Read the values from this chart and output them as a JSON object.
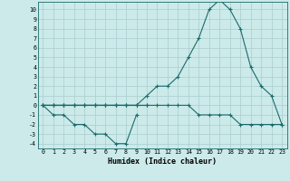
{
  "xlabel": "Humidex (Indice chaleur)",
  "bg_color": "#cceaea",
  "line_color": "#1a6b6b",
  "grid_color": "#aacccc",
  "xlim": [
    -0.5,
    23.5
  ],
  "ylim": [
    -4.5,
    10.8
  ],
  "xticks": [
    0,
    1,
    2,
    3,
    4,
    5,
    6,
    7,
    8,
    9,
    10,
    11,
    12,
    13,
    14,
    15,
    16,
    17,
    18,
    19,
    20,
    21,
    22,
    23
  ],
  "yticks": [
    -4,
    -3,
    -2,
    -1,
    0,
    1,
    2,
    3,
    4,
    5,
    6,
    7,
    8,
    9,
    10
  ],
  "series": [
    {
      "x": [
        0,
        1,
        2,
        3,
        4,
        5,
        6,
        7,
        8,
        9,
        10
      ],
      "y": [
        0,
        0,
        0,
        0,
        0,
        0,
        0,
        0,
        0,
        0,
        0
      ]
    },
    {
      "x": [
        0,
        1,
        2,
        3,
        4,
        5,
        6,
        7,
        8,
        9
      ],
      "y": [
        0,
        -1,
        -1,
        -2,
        -2,
        -3,
        -3,
        -4,
        -4,
        -1
      ]
    },
    {
      "x": [
        0,
        1,
        2,
        3,
        4,
        5,
        6,
        7,
        8,
        9,
        10,
        11,
        12,
        13,
        14,
        15,
        16,
        17,
        18,
        19,
        20,
        21,
        22,
        23
      ],
      "y": [
        0,
        0,
        0,
        0,
        0,
        0,
        0,
        0,
        0,
        0,
        0,
        0,
        0,
        0,
        0,
        -1,
        -1,
        -1,
        -1,
        -2,
        -2,
        -2,
        -2,
        -2
      ]
    },
    {
      "x": [
        0,
        1,
        2,
        3,
        4,
        5,
        6,
        7,
        8,
        9,
        10,
        11,
        12,
        13,
        14,
        15,
        16,
        17,
        18,
        19,
        20,
        21,
        22,
        23
      ],
      "y": [
        0,
        0,
        0,
        0,
        0,
        0,
        0,
        0,
        0,
        0,
        1,
        2,
        2,
        3,
        5,
        7,
        10,
        11,
        10,
        8,
        4,
        2,
        1,
        -2
      ]
    }
  ]
}
